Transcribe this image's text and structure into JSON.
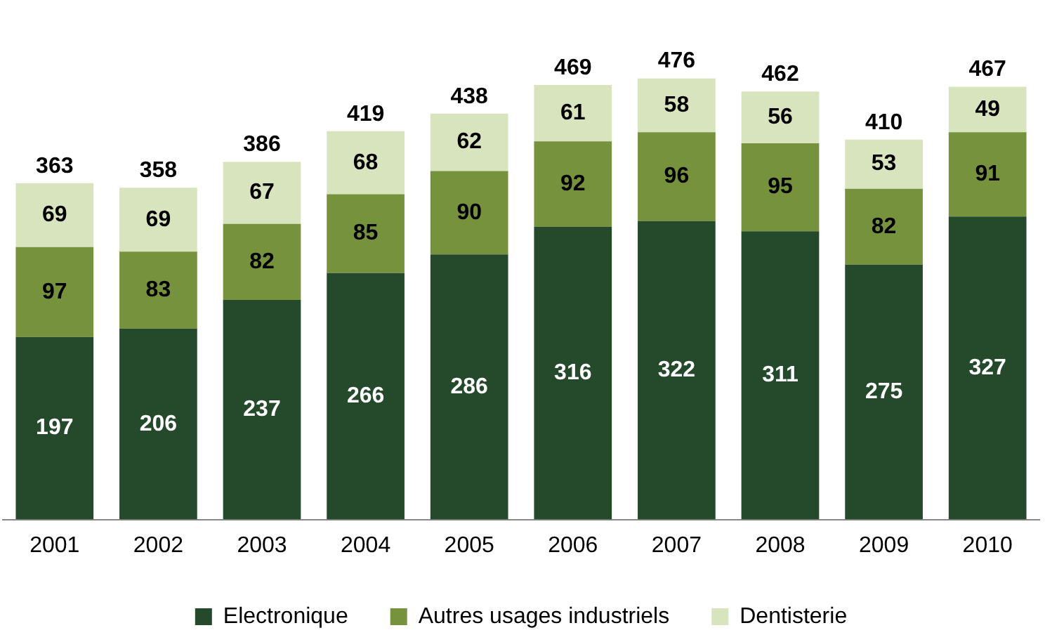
{
  "chart_data": {
    "type": "bar",
    "stacked": true,
    "data_labels": true,
    "legend": "bottom",
    "grid": false,
    "tick_labels": "x",
    "categories": [
      "2001",
      "2002",
      "2003",
      "2004",
      "2005",
      "2006",
      "2007",
      "2008",
      "2009",
      "2010"
    ],
    "series": [
      {
        "name": "Electronique",
        "color": "#244a2b",
        "values": [
          197,
          206,
          237,
          266,
          286,
          316,
          322,
          311,
          275,
          327
        ]
      },
      {
        "name": "Autres usages industriels",
        "color": "#76923c",
        "values": [
          97,
          83,
          82,
          85,
          90,
          92,
          96,
          95,
          82,
          91
        ]
      },
      {
        "name": "Dentisterie",
        "color": "#d7e4bd",
        "values": [
          69,
          69,
          67,
          68,
          62,
          61,
          58,
          56,
          53,
          49
        ]
      }
    ],
    "totals": [
      "363",
      "358",
      "386",
      "419",
      "438",
      "469",
      "476",
      "462",
      "410",
      "467"
    ]
  }
}
